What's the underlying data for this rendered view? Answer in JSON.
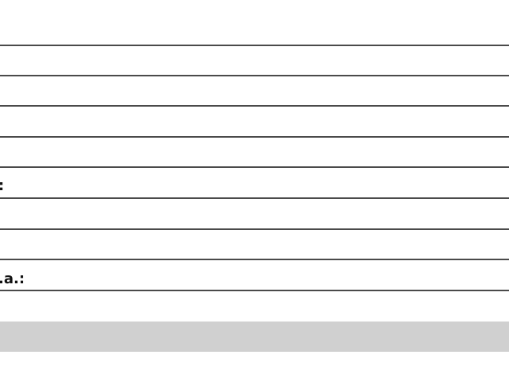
{
  "form": {
    "labels": [
      ":",
      ".a.:"
    ]
  },
  "colors": {
    "line": "#4a4a4a",
    "footer_bar": "#d0d0d0"
  }
}
